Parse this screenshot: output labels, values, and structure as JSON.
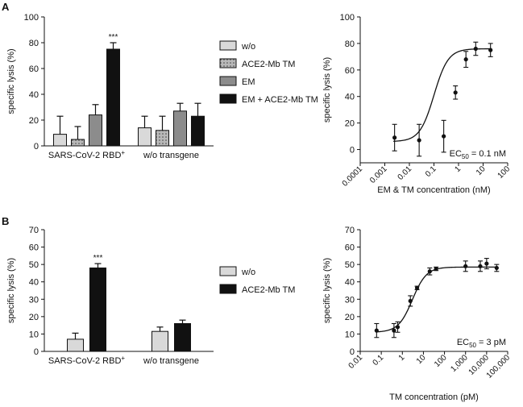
{
  "panel_labels": {
    "a": "A",
    "b": "B"
  },
  "colors": {
    "wo": "#d9d9d9",
    "ace2_tm": "#b8b8b8",
    "em": "#8c8c8c",
    "combo": "#111111",
    "axis": "#111111"
  },
  "chart_data": [
    {
      "id": "a_bar",
      "type": "bar",
      "ylabel": "specific lysis (%)",
      "ylim": [
        0,
        100
      ],
      "yticks": [
        0,
        20,
        40,
        60,
        80,
        100
      ],
      "categories": [
        "SARS-CoV-2 RBD",
        "w/o transgene"
      ],
      "category_superscript": [
        "+",
        ""
      ],
      "series": [
        {
          "name": "w/o",
          "values": [
            9,
            14
          ],
          "errors": [
            14,
            9
          ],
          "fill": "#d9d9d9",
          "pattern": ""
        },
        {
          "name": "ACE2-Mb TM",
          "values": [
            5,
            12
          ],
          "errors": [
            10,
            11
          ],
          "fill": "#b8b8b8",
          "pattern": "dots"
        },
        {
          "name": "EM",
          "values": [
            24,
            27
          ],
          "errors": [
            8,
            6
          ],
          "fill": "#8c8c8c",
          "pattern": ""
        },
        {
          "name": "EM + ACE2-Mb TM",
          "values": [
            75,
            23
          ],
          "errors": [
            5,
            10
          ],
          "fill": "#111111",
          "pattern": ""
        }
      ],
      "annotations": [
        {
          "category": 0,
          "series": 3,
          "text": "***"
        }
      ]
    },
    {
      "id": "a_curve",
      "type": "scatter",
      "xlabel": "EM & TM concentration (nM)",
      "ylabel": "specific lysis (%)",
      "xscale": "log",
      "xlim": [
        0.0001,
        100
      ],
      "xticks": [
        "0.0001",
        "0.001",
        "0.01",
        "0.1",
        "1",
        "10",
        "100"
      ],
      "ylim": [
        -10,
        100
      ],
      "yticks": [
        0,
        20,
        40,
        60,
        80,
        100
      ],
      "x": [
        0.0025,
        0.025,
        0.25,
        0.75,
        2,
        5,
        20
      ],
      "y": [
        9,
        7,
        10,
        43,
        68,
        76,
        75
      ],
      "errors": [
        10,
        12,
        12,
        5,
        6,
        5,
        5
      ],
      "fit": {
        "model": "4PL",
        "bottom": 6,
        "top": 76,
        "ec50": 0.1,
        "hill": 1.5
      },
      "annotation": {
        "prefix": "EC",
        "sub": "50",
        "suffix": " = 0.1 nM"
      }
    },
    {
      "id": "b_bar",
      "type": "bar",
      "ylabel": "specific lysis (%)",
      "ylim": [
        0,
        70
      ],
      "yticks": [
        0,
        10,
        20,
        30,
        40,
        50,
        60,
        70
      ],
      "categories": [
        "SARS-CoV-2 RBD",
        "w/o transgene"
      ],
      "category_superscript": [
        "+",
        ""
      ],
      "series": [
        {
          "name": "w/o",
          "values": [
            7,
            11.5
          ],
          "errors": [
            3.5,
            2.5
          ],
          "fill": "#d9d9d9",
          "pattern": ""
        },
        {
          "name": "ACE2-Mb TM",
          "values": [
            48,
            16
          ],
          "errors": [
            2.5,
            2
          ],
          "fill": "#111111",
          "pattern": ""
        }
      ],
      "annotations": [
        {
          "category": 0,
          "series": 1,
          "text": "***"
        }
      ]
    },
    {
      "id": "b_curve",
      "type": "scatter",
      "xlabel": "TM concentration (pM)",
      "ylabel": "specific lysis (%)",
      "xscale": "log",
      "xlim": [
        0.01,
        100000
      ],
      "xticks": [
        "0.01",
        "0.1",
        "1",
        "10",
        "100",
        "1,000",
        "10,000",
        "100,000"
      ],
      "ylim": [
        0,
        70
      ],
      "yticks": [
        0,
        10,
        20,
        30,
        40,
        50,
        60,
        70
      ],
      "x": [
        0.06,
        0.4,
        0.6,
        2.4,
        5,
        20,
        40,
        1000,
        5000,
        10000,
        30000
      ],
      "y": [
        12,
        12,
        14,
        29,
        36.5,
        46,
        47.5,
        49,
        49,
        50.5,
        48
      ],
      "errors": [
        4,
        4,
        3,
        3,
        1,
        2,
        1,
        3,
        3,
        3,
        2
      ],
      "fit": {
        "model": "4PL",
        "bottom": 11,
        "top": 48.5,
        "ec50": 3,
        "hill": 1.3
      },
      "annotation": {
        "prefix": "EC",
        "sub": "50",
        "suffix": " = 3 pM"
      }
    }
  ]
}
